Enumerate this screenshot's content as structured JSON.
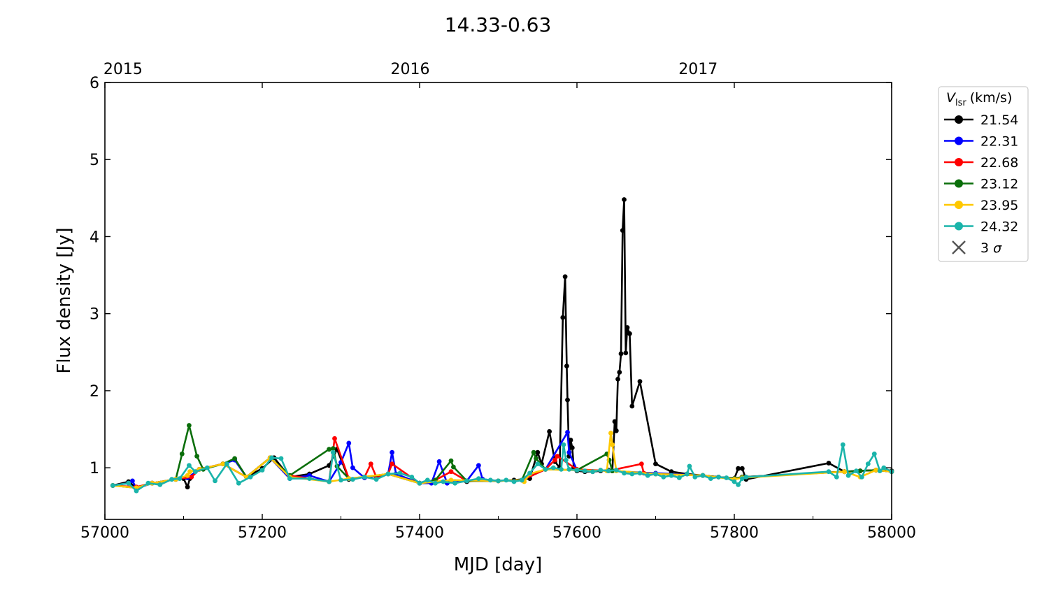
{
  "chart_data": {
    "type": "line",
    "title": "14.33-0.63",
    "xlabel": "MJD [day]",
    "ylabel": "Flux density [Jy]",
    "xlim": [
      57000,
      58000
    ],
    "ylim": [
      0.33,
      6
    ],
    "x_ticks": [
      57000,
      57200,
      57400,
      57600,
      57800,
      58000
    ],
    "y_ticks": [
      1,
      2,
      3,
      4,
      5,
      6
    ],
    "top_axis": {
      "ticks": [
        {
          "label": "2015",
          "mjd": 57023
        },
        {
          "label": "2016",
          "mjd": 57388
        },
        {
          "label": "2017",
          "mjd": 57754
        }
      ]
    },
    "grid": false,
    "legend": {
      "placement": "outside-right-top",
      "title_symbol": "V",
      "title_subscript": "lsr",
      "title_unit": "(km/s)",
      "sigma_prefix": "3",
      "sigma_symbol": "σ",
      "sigma_color": "#555555"
    },
    "series": [
      {
        "name": "21.54",
        "color": "#000000",
        "x": [
          57010,
          57030,
          57040,
          57060,
          57090,
          57100,
          57105,
          57108,
          57120,
          57150,
          57180,
          57200,
          57215,
          57235,
          57260,
          57285,
          57295,
          57310,
          57330,
          57360,
          57400,
          57420,
          57440,
          57460,
          57480,
          57500,
          57520,
          57540,
          57550,
          57555,
          57565,
          57572,
          57578,
          57582,
          57585,
          57587,
          57588,
          57590,
          57592,
          57594,
          57596,
          57600,
          57610,
          57620,
          57630,
          57640,
          57645,
          57648,
          57650,
          57652,
          57654,
          57656,
          57658,
          57660,
          57662,
          57664,
          57667,
          57670,
          57680,
          57700,
          57720,
          57740,
          57760,
          57780,
          57800,
          57805,
          57810,
          57815,
          57920,
          57940,
          57960,
          57980,
          58000
        ],
        "y": [
          0.77,
          0.82,
          0.74,
          0.8,
          0.85,
          0.86,
          0.75,
          0.86,
          0.98,
          1.05,
          0.88,
          0.99,
          1.13,
          0.88,
          0.92,
          1.03,
          1.24,
          0.85,
          0.88,
          0.92,
          0.8,
          0.82,
          0.83,
          0.82,
          0.85,
          0.83,
          0.84,
          0.86,
          1.2,
          1.05,
          1.47,
          1.08,
          1.0,
          2.95,
          3.48,
          2.32,
          1.88,
          1.15,
          1.36,
          1.26,
          1.0,
          0.96,
          0.95,
          0.95,
          0.96,
          0.97,
          0.96,
          1.6,
          1.48,
          2.15,
          2.24,
          2.48,
          4.08,
          4.48,
          2.49,
          2.82,
          2.74,
          1.8,
          2.12,
          1.05,
          0.95,
          0.92,
          0.9,
          0.88,
          0.86,
          0.99,
          0.99,
          0.85,
          1.06,
          0.95,
          0.96,
          0.97,
          0.96
        ]
      },
      {
        "name": "22.31",
        "color": "#0000ff",
        "x": [
          57010,
          57030,
          57035,
          57040,
          57060,
          57090,
          57105,
          57120,
          57150,
          57165,
          57180,
          57210,
          57235,
          57260,
          57285,
          57300,
          57310,
          57315,
          57330,
          57360,
          57365,
          57370,
          57400,
          57415,
          57425,
          57435,
          57445,
          57460,
          57475,
          57480,
          57500,
          57530,
          57560,
          57588,
          57590,
          57600,
          57640,
          57700,
          57760,
          57800,
          57810,
          57940,
          57960,
          57980,
          58000
        ],
        "y": [
          0.77,
          0.8,
          0.83,
          0.73,
          0.8,
          0.85,
          0.87,
          0.98,
          1.05,
          1.1,
          0.88,
          1.13,
          0.86,
          0.9,
          0.82,
          1.07,
          1.32,
          1.0,
          0.87,
          0.92,
          1.2,
          0.92,
          0.8,
          0.8,
          1.08,
          0.8,
          0.82,
          0.83,
          1.03,
          0.85,
          0.83,
          0.84,
          0.98,
          1.46,
          1.2,
          0.97,
          0.96,
          0.93,
          0.9,
          0.86,
          0.88,
          0.95,
          0.96,
          0.97,
          0.95
        ]
      },
      {
        "name": "22.68",
        "color": "#ff0000",
        "x": [
          57010,
          57040,
          57060,
          57090,
          57110,
          57120,
          57150,
          57180,
          57210,
          57235,
          57285,
          57292,
          57310,
          57330,
          57338,
          57345,
          57360,
          57365,
          57400,
          57420,
          57440,
          57460,
          57500,
          57530,
          57560,
          57572,
          57575,
          57600,
          57640,
          57682,
          57685,
          57700,
          57760,
          57800,
          57810,
          57940,
          57960,
          57980,
          58000
        ],
        "y": [
          0.77,
          0.75,
          0.8,
          0.85,
          0.88,
          0.98,
          1.05,
          0.88,
          1.13,
          0.9,
          0.82,
          1.38,
          0.86,
          0.88,
          1.05,
          0.88,
          0.92,
          1.05,
          0.8,
          0.84,
          0.95,
          0.83,
          0.83,
          0.84,
          0.98,
          1.1,
          1.15,
          0.98,
          0.96,
          1.05,
          0.93,
          0.92,
          0.9,
          0.86,
          0.88,
          0.95,
          0.96,
          0.97,
          0.95
        ]
      },
      {
        "name": "23.12",
        "color": "#0a6e0a",
        "x": [
          57010,
          57040,
          57060,
          57090,
          57098,
          57107,
          57117,
          57125,
          57150,
          57165,
          57180,
          57210,
          57235,
          57285,
          57290,
          57295,
          57310,
          57330,
          57360,
          57400,
          57420,
          57440,
          57443,
          57460,
          57500,
          57530,
          57545,
          57548,
          57560,
          57600,
          57638,
          57641,
          57645,
          57700,
          57760,
          57800,
          57810,
          57940,
          57960,
          57980,
          58000
        ],
        "y": [
          0.77,
          0.74,
          0.8,
          0.85,
          1.18,
          1.55,
          1.15,
          0.98,
          1.05,
          1.12,
          0.88,
          1.13,
          0.9,
          1.24,
          1.25,
          1.02,
          0.86,
          0.88,
          0.92,
          0.8,
          0.84,
          1.09,
          1.01,
          0.83,
          0.83,
          0.84,
          1.2,
          1.12,
          0.98,
          0.97,
          1.18,
          1.1,
          0.96,
          0.92,
          0.9,
          0.86,
          0.88,
          0.95,
          0.96,
          0.97,
          0.95
        ]
      },
      {
        "name": "23.95",
        "color": "#ffc800",
        "x": [
          57010,
          57040,
          57060,
          57090,
          57105,
          57108,
          57120,
          57150,
          57180,
          57210,
          57235,
          57285,
          57310,
          57360,
          57400,
          57440,
          57500,
          57530,
          57533,
          57540,
          57560,
          57600,
          57638,
          57643,
          57645,
          57650,
          57700,
          57760,
          57800,
          57810,
          57940,
          57960,
          57980,
          58000
        ],
        "y": [
          0.77,
          0.74,
          0.8,
          0.85,
          0.9,
          0.95,
          0.98,
          1.05,
          0.88,
          1.13,
          0.88,
          0.82,
          0.86,
          0.92,
          0.8,
          0.84,
          0.83,
          0.84,
          0.82,
          0.92,
          0.98,
          0.97,
          0.96,
          1.45,
          1.3,
          0.96,
          0.92,
          0.9,
          0.85,
          0.87,
          0.95,
          0.88,
          0.97,
          0.95
        ]
      },
      {
        "name": "24.32",
        "color": "#1ab4aa",
        "x": [
          57010,
          57030,
          57040,
          57055,
          57070,
          57085,
          57095,
          57107,
          57115,
          57130,
          57140,
          57155,
          57170,
          57185,
          57200,
          57212,
          57224,
          57235,
          57260,
          57285,
          57290,
          57300,
          57315,
          57330,
          57345,
          57360,
          57375,
          57390,
          57400,
          57410,
          57420,
          57430,
          57445,
          57460,
          57475,
          57490,
          57500,
          57510,
          57520,
          57530,
          57540,
          57550,
          57560,
          57570,
          57580,
          57583,
          57586,
          57590,
          57600,
          57610,
          57620,
          57630,
          57640,
          57650,
          57660,
          57670,
          57680,
          57690,
          57700,
          57710,
          57720,
          57730,
          57740,
          57743,
          57750,
          57760,
          57770,
          57780,
          57790,
          57800,
          57805,
          57810,
          57815,
          57920,
          57930,
          57938,
          57945,
          57955,
          57962,
          57970,
          57978,
          57985,
          57990,
          58000
        ],
        "y": [
          0.77,
          0.8,
          0.7,
          0.8,
          0.78,
          0.85,
          0.86,
          1.03,
          0.95,
          1.0,
          0.83,
          1.05,
          0.8,
          0.88,
          0.97,
          1.13,
          1.12,
          0.86,
          0.86,
          0.82,
          1.2,
          0.84,
          0.85,
          0.88,
          0.85,
          0.92,
          0.93,
          0.88,
          0.8,
          0.84,
          0.8,
          0.82,
          0.8,
          0.83,
          0.86,
          0.84,
          0.83,
          0.84,
          0.82,
          0.84,
          0.93,
          1.05,
          0.98,
          1.0,
          0.98,
          1.3,
          1.1,
          0.98,
          0.97,
          0.96,
          0.95,
          0.97,
          0.96,
          0.97,
          0.93,
          0.92,
          0.93,
          0.9,
          0.92,
          0.88,
          0.9,
          0.87,
          0.92,
          1.02,
          0.88,
          0.9,
          0.86,
          0.88,
          0.87,
          0.82,
          0.78,
          0.86,
          0.88,
          0.95,
          0.88,
          1.3,
          0.9,
          0.96,
          0.88,
          1.05,
          1.18,
          0.96,
          1.0,
          0.95
        ]
      }
    ]
  }
}
